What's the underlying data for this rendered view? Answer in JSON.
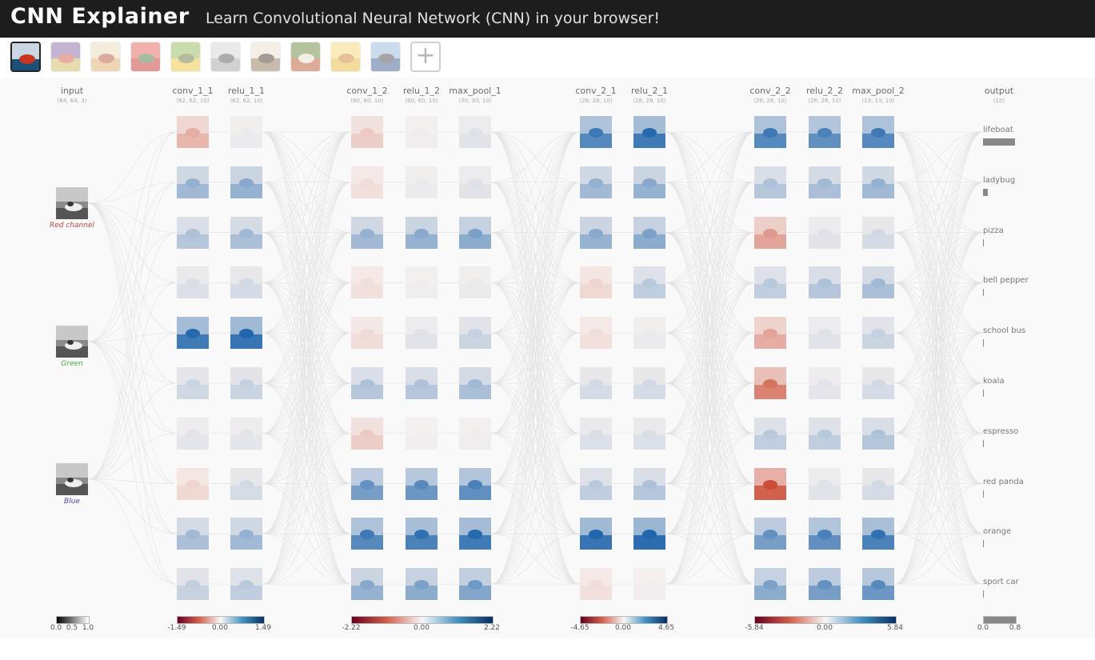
{
  "header": {
    "title": "CNN Explainer",
    "tagline": "Learn Convolutional Neural Network (CNN) in your browser!"
  },
  "thumbnails": [
    {
      "name": "lifeboat",
      "c1": "#1c4f7a",
      "c2": "#c9d6e4",
      "c3": "#c7371f",
      "selected": true
    },
    {
      "name": "ladybug",
      "c1": "#c9b24b",
      "c2": "#7b5a9a",
      "c3": "#d04a3a",
      "selected": false
    },
    {
      "name": "pizza",
      "c1": "#d8a35e",
      "c2": "#e7d6b0",
      "c3": "#b5442a",
      "selected": false
    },
    {
      "name": "bell pepper",
      "c1": "#c2211a",
      "c2": "#e0554a",
      "c3": "#3e6b2a",
      "selected": false
    },
    {
      "name": "school bus",
      "c1": "#e8c02a",
      "c2": "#8bb04a",
      "c3": "#5a6b2a",
      "selected": false
    },
    {
      "name": "koala",
      "c1": "#9a9a9a",
      "c2": "#d0d0d0",
      "c3": "#4a4a4a",
      "selected": false
    },
    {
      "name": "espresso",
      "c1": "#8a6a4a",
      "c2": "#e7dcc8",
      "c3": "#3b2414",
      "selected": false
    },
    {
      "name": "red panda",
      "c1": "#b24a1e",
      "c2": "#5a7a2a",
      "c3": "#e7dcc8",
      "selected": false
    },
    {
      "name": "orange",
      "c1": "#e8b32a",
      "c2": "#f4d36a",
      "c3": "#c87a1a",
      "selected": false
    },
    {
      "name": "sport car",
      "c1": "#2a4e8a",
      "c2": "#8ab0d8",
      "c3": "#3a3a3a",
      "selected": false
    }
  ],
  "add_button_label": "+",
  "layers": [
    {
      "name": "input",
      "dims": "(64, 64, 3)"
    },
    {
      "name": "conv_1_1",
      "dims": "(62, 62, 10)"
    },
    {
      "name": "relu_1_1",
      "dims": "(62, 62, 10)"
    },
    {
      "name": "conv_1_2",
      "dims": "(60, 60, 10)"
    },
    {
      "name": "relu_1_2",
      "dims": "(60, 60, 10)"
    },
    {
      "name": "max_pool_1",
      "dims": "(30, 30, 10)"
    },
    {
      "name": "conv_2_1",
      "dims": "(28, 28, 10)"
    },
    {
      "name": "relu_2_1",
      "dims": "(28, 28, 10)"
    },
    {
      "name": "conv_2_2",
      "dims": "(26, 26, 10)"
    },
    {
      "name": "relu_2_2",
      "dims": "(26, 26, 10)"
    },
    {
      "name": "max_pool_2",
      "dims": "(13, 13, 10)"
    },
    {
      "name": "output",
      "dims": "(10)"
    }
  ],
  "channels": [
    "Red channel",
    "Green",
    "Blue"
  ],
  "channel_colors": [
    "#b44",
    "#4a4",
    "#44a"
  ],
  "activations": {
    "conv_1_1": [
      -0.35,
      0.4,
      0.3,
      0.12,
      0.85,
      0.18,
      0.08,
      -0.15,
      0.35,
      0.22
    ],
    "relu_1_1": [
      0.05,
      0.45,
      0.35,
      0.15,
      0.9,
      0.2,
      0.08,
      0.15,
      0.4,
      0.25
    ],
    "conv_1_2": [
      -0.2,
      -0.1,
      0.4,
      -0.1,
      -0.12,
      0.3,
      -0.2,
      0.6,
      0.75,
      0.45
    ],
    "relu_1_2": [
      0.03,
      0.05,
      0.45,
      0.03,
      0.1,
      0.3,
      0.02,
      0.65,
      0.8,
      0.5
    ],
    "max_pool_1": [
      0.1,
      0.1,
      0.5,
      0.05,
      0.2,
      0.35,
      0.03,
      0.7,
      0.85,
      0.55
    ],
    "conv_2_1": [
      0.75,
      0.4,
      0.45,
      -0.15,
      -0.1,
      0.15,
      0.12,
      0.25,
      0.9,
      -0.1
    ],
    "relu_2_1": [
      0.85,
      0.45,
      0.5,
      0.25,
      0.05,
      0.15,
      0.12,
      0.3,
      0.95,
      0.02
    ],
    "conv_2_2": [
      0.75,
      0.3,
      -0.45,
      0.25,
      -0.4,
      -0.65,
      0.25,
      -0.85,
      0.6,
      0.5
    ],
    "relu_2_2": [
      0.7,
      0.35,
      0.1,
      0.3,
      0.1,
      0.08,
      0.25,
      0.1,
      0.7,
      0.6
    ],
    "max_pool_2": [
      0.75,
      0.4,
      0.15,
      0.35,
      0.2,
      0.15,
      0.3,
      0.15,
      0.8,
      0.65
    ]
  },
  "outputs": [
    {
      "label": "lifeboat",
      "value": 0.8
    },
    {
      "label": "ladybug",
      "value": 0.12
    },
    {
      "label": "pizza",
      "value": 0.0
    },
    {
      "label": "bell pepper",
      "value": 0.0
    },
    {
      "label": "school bus",
      "value": 0.02
    },
    {
      "label": "koala",
      "value": 0.0
    },
    {
      "label": "espresso",
      "value": 0.01
    },
    {
      "label": "red panda",
      "value": 0.0
    },
    {
      "label": "orange",
      "value": 0.02
    },
    {
      "label": "sport car",
      "value": 0.0
    }
  ],
  "scales": [
    {
      "name": "input",
      "min": "0.0",
      "mid": "0.5",
      "max": "1.0",
      "kind": "gray"
    },
    {
      "name": "block1",
      "min": "-1.49",
      "mid": "0.00",
      "max": "1.49",
      "kind": "div"
    },
    {
      "name": "block2",
      "min": "-2.22",
      "mid": "0.00",
      "max": "2.22",
      "kind": "div"
    },
    {
      "name": "block3",
      "min": "-4.65",
      "mid": "0.00",
      "max": "4.65",
      "kind": "div"
    },
    {
      "name": "block4",
      "min": "-5.84",
      "mid": "0.00",
      "max": "5.84",
      "kind": "div"
    },
    {
      "name": "output",
      "min": "0.0",
      "mid": "",
      "max": "0.8",
      "kind": "out"
    }
  ]
}
